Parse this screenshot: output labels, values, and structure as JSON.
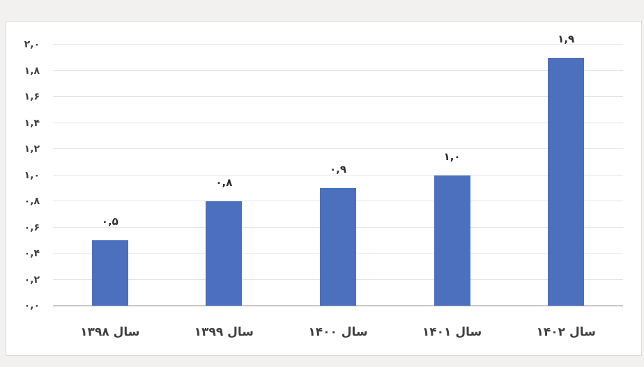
{
  "page": {
    "background_color": "#f2f1ef",
    "panel_background_color": "#ffffff",
    "panel_border_color": "#dadada"
  },
  "chart_data": {
    "type": "bar",
    "categories": [
      "سال ۱۳۹۸",
      "سال ۱۳۹۹",
      "سال ۱۴۰۰",
      "سال ۱۴۰۱",
      "سال ۱۴۰۲"
    ],
    "values": [
      0.5,
      0.8,
      0.9,
      1.0,
      1.9
    ],
    "data_labels": [
      "۰,۵",
      "۰,۸",
      "۰,۹",
      "۱,۰",
      "۱,۹"
    ],
    "y_ticks": [
      "۲,۰",
      "۱,۸",
      "۱,۶",
      "۱,۴",
      "۱,۲",
      "۱,۰",
      "۰,۸",
      "۰,۶",
      "۰,۴",
      "۰,۲",
      "۰,۰"
    ],
    "y_tick_values": [
      2.0,
      1.8,
      1.6,
      1.4,
      1.2,
      1.0,
      0.8,
      0.6,
      0.4,
      0.2,
      0.0
    ],
    "ylim": [
      0,
      2.0
    ],
    "grid": true,
    "legend": false,
    "category_order": "left-to-right",
    "text_direction": "rtl",
    "bar_color": "#4c70be",
    "gridline_color": "#e4e4e4",
    "axis_line_color": "#c9c9c9",
    "label_color": "#3f3f3f"
  }
}
